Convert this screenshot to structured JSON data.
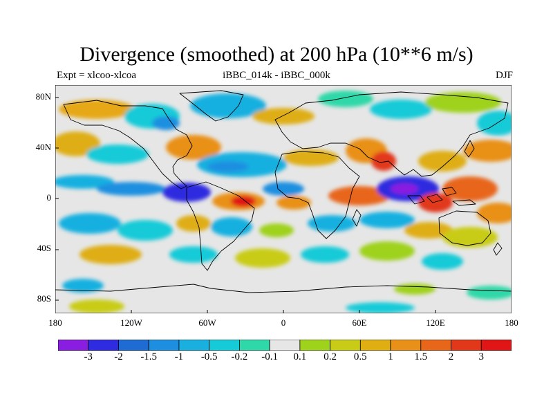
{
  "title": "Divergence (smoothed) at 200 hPa (10**6 m/s)",
  "subtitle_left": "Expt = xlcoo-xlcoa",
  "subtitle_center": "iBBC_014k - iBBC_000k",
  "subtitle_right": "DJF",
  "y_axis": {
    "labels": [
      "80N",
      "40N",
      "0",
      "40S",
      "80S"
    ],
    "values": [
      80,
      40,
      0,
      -40,
      -80
    ],
    "lat_range": [
      -90,
      90
    ]
  },
  "x_axis": {
    "labels": [
      "180",
      "120W",
      "60W",
      "0",
      "60E",
      "120E",
      "180"
    ],
    "values": [
      -180,
      -120,
      -60,
      0,
      60,
      120,
      180
    ],
    "lon_range": [
      -180,
      180
    ]
  },
  "colorbar": {
    "labels": [
      "-3",
      "-2",
      "-1.5",
      "-1",
      "-0.5",
      "-0.2",
      "-0.1",
      "0.1",
      "0.2",
      "0.5",
      "1",
      "1.5",
      "2",
      "3"
    ],
    "colors": [
      "#8a1ee0",
      "#2f2be0",
      "#1f6bd4",
      "#1e8fe0",
      "#19b0e0",
      "#17cad8",
      "#2ed8a8",
      "#e6e6e6",
      "#9fd21a",
      "#c9cc16",
      "#dfae12",
      "#e99018",
      "#e8661a",
      "#e2381a",
      "#e01515"
    ]
  },
  "colors": {
    "neutral": "#e6e6e6",
    "coastline": "#000000"
  }
}
